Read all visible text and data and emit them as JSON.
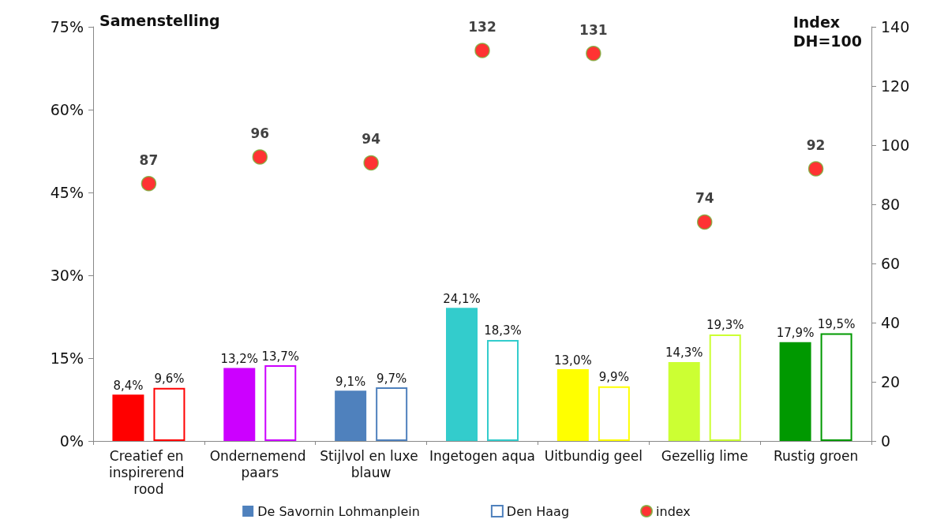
{
  "chart_data": {
    "type": "bar",
    "ylabel": "Samenstelling",
    "y2label": "Index\nDH=100",
    "categories": [
      "Creatief en inspirerend rood",
      "Ondernemend paars",
      "Stijlvol en luxe blauw",
      "Ingetogen aqua",
      "Uitbundig geel",
      "Gezellig lime",
      "Rustig groen"
    ],
    "series": [
      {
        "name": "De Savornin Lohmanplein",
        "color": "#4f81bd",
        "colors": [
          "#ff0000",
          "#cc00ff",
          "#4f81bd",
          "#33cccc",
          "#ffff00",
          "#ccff33",
          "#009900"
        ],
        "values": [
          8.4,
          13.2,
          9.1,
          24.1,
          13.0,
          14.3,
          17.9
        ],
        "value_labels": [
          "8,4%",
          "13,2%",
          "9,1%",
          "24,1%",
          "13,0%",
          "14,3%",
          "17,9%"
        ]
      },
      {
        "name": "Den Haag",
        "color": "#4f81bd",
        "colors": [
          "#ff0000",
          "#cc00ff",
          "#4f81bd",
          "#33cccc",
          "#ffff00",
          "#ccff33",
          "#009900"
        ],
        "values": [
          9.6,
          13.7,
          9.7,
          18.3,
          9.9,
          19.3,
          19.5
        ],
        "value_labels": [
          "9,6%",
          "13,7%",
          "9,7%",
          "18,3%",
          "9,9%",
          "19,3%",
          "19,5%"
        ]
      },
      {
        "name": "index",
        "type": "scatter",
        "axis": "y2",
        "color": "#ff0000",
        "values": [
          87,
          96,
          94,
          132,
          131,
          74,
          92
        ],
        "value_labels": [
          "87",
          "96",
          "94",
          "132",
          "131",
          "74",
          "92"
        ]
      }
    ],
    "ylim": [
      0,
      75
    ],
    "yticks": [
      {
        "value": 0,
        "label": "0%"
      },
      {
        "value": 15,
        "label": "15%"
      },
      {
        "value": 30,
        "label": "30%"
      },
      {
        "value": 45,
        "label": "45%"
      },
      {
        "value": 60,
        "label": "60%"
      },
      {
        "value": 75,
        "label": "75%"
      }
    ],
    "y2lim": [
      0,
      140
    ],
    "y2ticks": [
      0,
      20,
      40,
      60,
      80,
      100,
      120,
      140
    ],
    "marker": "circle",
    "legend": "bottom",
    "grid": false
  }
}
